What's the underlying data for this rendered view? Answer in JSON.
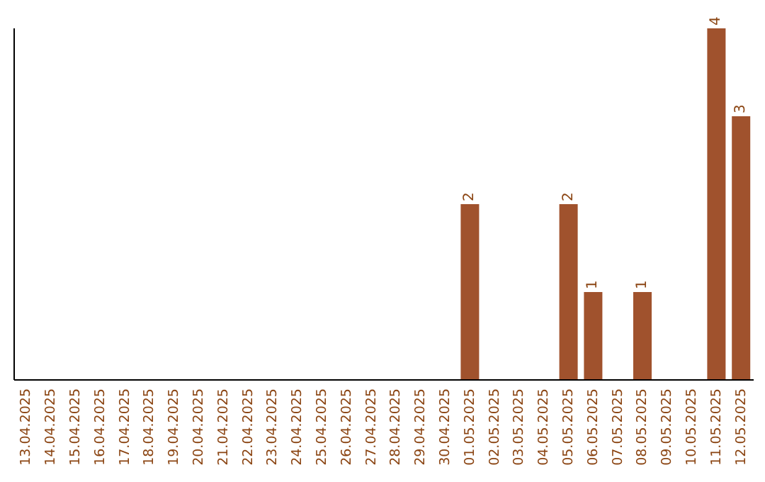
{
  "chart_data": {
    "type": "bar",
    "categories": [
      "13.04.2025",
      "14.04.2025",
      "15.04.2025",
      "16.04.2025",
      "17.04.2025",
      "18.04.2025",
      "19.04.2025",
      "20.04.2025",
      "21.04.2025",
      "22.04.2025",
      "23.04.2025",
      "24.04.2025",
      "25.04.2025",
      "26.04.2025",
      "27.04.2025",
      "28.04.2025",
      "29.04.2025",
      "30.04.2025",
      "01.05.2025",
      "02.05.2025",
      "03.05.2025",
      "04.05.2025",
      "05.05.2025",
      "06.05.2025",
      "07.05.2025",
      "08.05.2025",
      "09.05.2025",
      "10.05.2025",
      "11.05.2025",
      "12.05.2025"
    ],
    "values": [
      null,
      null,
      null,
      null,
      null,
      null,
      null,
      null,
      null,
      null,
      null,
      null,
      null,
      null,
      null,
      null,
      null,
      null,
      2,
      null,
      null,
      null,
      2,
      1,
      null,
      1,
      null,
      null,
      4,
      3
    ],
    "value_labels": [
      null,
      null,
      null,
      null,
      null,
      null,
      null,
      null,
      null,
      null,
      null,
      null,
      null,
      null,
      null,
      null,
      null,
      null,
      "2",
      null,
      null,
      null,
      "2",
      "1",
      null,
      "1",
      null,
      null,
      "4",
      "3"
    ],
    "color": "#a0522d",
    "grid": false,
    "legend": false
  }
}
